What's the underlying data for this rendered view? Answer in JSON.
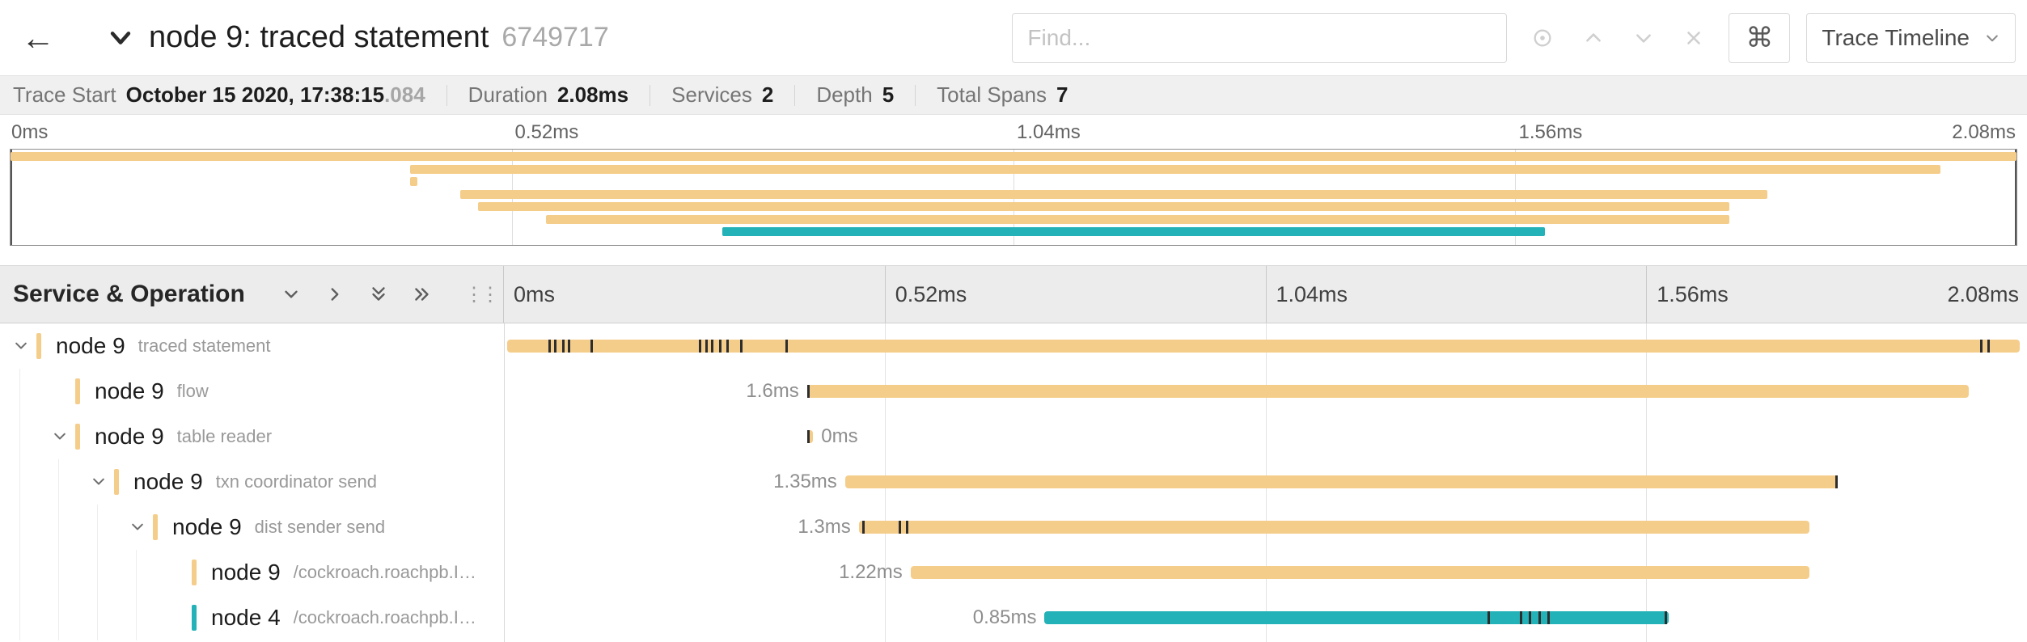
{
  "header": {
    "title": "node 9: traced statement",
    "trace_id": "6749717",
    "find_placeholder": "Find...",
    "shortcut_key": "⌘",
    "view_dropdown": "Trace Timeline"
  },
  "summary": {
    "trace_start_label": "Trace Start",
    "trace_start_value": "October 15 2020, 17:38:15",
    "trace_start_ms": ".084",
    "duration_label": "Duration",
    "duration_value": "2.08ms",
    "services_label": "Services",
    "services_value": "2",
    "depth_label": "Depth",
    "depth_value": "5",
    "total_spans_label": "Total Spans",
    "total_spans_value": "7"
  },
  "colors": {
    "tan": "#F5CD8B",
    "teal": "#23B2B8"
  },
  "minimap": {
    "ticks": [
      "0ms",
      "0.52ms",
      "1.04ms",
      "1.56ms",
      "2.08ms"
    ],
    "bars": [
      {
        "start": 0,
        "end": 100,
        "color": "#F5CD8B"
      },
      {
        "start": 19.9,
        "end": 96.2,
        "color": "#F5CD8B"
      },
      {
        "start": 19.9,
        "end": 20.3,
        "color": "#F5CD8B"
      },
      {
        "start": 22.4,
        "end": 87.6,
        "color": "#F5CD8B"
      },
      {
        "start": 23.3,
        "end": 85.7,
        "color": "#F5CD8B"
      },
      {
        "start": 26.7,
        "end": 85.7,
        "color": "#F5CD8B"
      },
      {
        "start": 35.5,
        "end": 76.5,
        "color": "#23B2B8"
      }
    ]
  },
  "timeline_header": {
    "title": "Service & Operation",
    "ticks": [
      "0ms",
      "0.52ms",
      "1.04ms",
      "1.56ms",
      "2.08ms"
    ]
  },
  "spans": [
    {
      "service": "node 9",
      "operation": "traced statement",
      "level": 0,
      "expandable": true,
      "color": "#F5CD8B",
      "bar_start": 0.2,
      "bar_end": 99.5,
      "duration_label": "",
      "label_side": "none",
      "ticks": [
        2.9,
        3.3,
        3.8,
        4.2,
        5.7,
        12.8,
        13.2,
        13.6,
        14.1,
        14.6,
        15.5,
        18.5,
        96.9,
        97.4
      ]
    },
    {
      "service": "node 9",
      "operation": "flow",
      "level": 1,
      "expandable": false,
      "color": "#F5CD8B",
      "bar_start": 19.9,
      "bar_end": 96.2,
      "duration_label": "1.6ms",
      "label_side": "left",
      "ticks": [
        19.9
      ]
    },
    {
      "service": "node 9",
      "operation": "table reader",
      "level": 1,
      "expandable": true,
      "color": "#F5CD8B",
      "bar_start": 19.9,
      "bar_end": 20.3,
      "duration_label": "0ms",
      "label_side": "right",
      "ticks": [
        19.9
      ]
    },
    {
      "service": "node 9",
      "operation": "txn coordinator send",
      "level": 2,
      "expandable": true,
      "color": "#F5CD8B",
      "bar_start": 22.4,
      "bar_end": 87.6,
      "duration_label": "1.35ms",
      "label_side": "left",
      "ticks": [
        87.4
      ]
    },
    {
      "service": "node 9",
      "operation": "dist sender send",
      "level": 3,
      "expandable": true,
      "color": "#F5CD8B",
      "bar_start": 23.3,
      "bar_end": 85.7,
      "duration_label": "1.3ms",
      "label_side": "left",
      "ticks": [
        23.5,
        25.9,
        26.4
      ]
    },
    {
      "service": "node 9",
      "operation": "/cockroach.roachpb.I…",
      "level": 4,
      "expandable": false,
      "color": "#F5CD8B",
      "bar_start": 26.7,
      "bar_end": 85.7,
      "duration_label": "1.22ms",
      "label_side": "left",
      "ticks": []
    },
    {
      "service": "node 4",
      "operation": "/cockroach.roachpb.I…",
      "level": 4,
      "expandable": false,
      "color": "#23B2B8",
      "bar_start": 35.5,
      "bar_end": 76.5,
      "duration_label": "0.85ms",
      "label_side": "left",
      "ticks": [
        64.6,
        66.7,
        67.3,
        67.9,
        68.5,
        76.2
      ]
    }
  ]
}
